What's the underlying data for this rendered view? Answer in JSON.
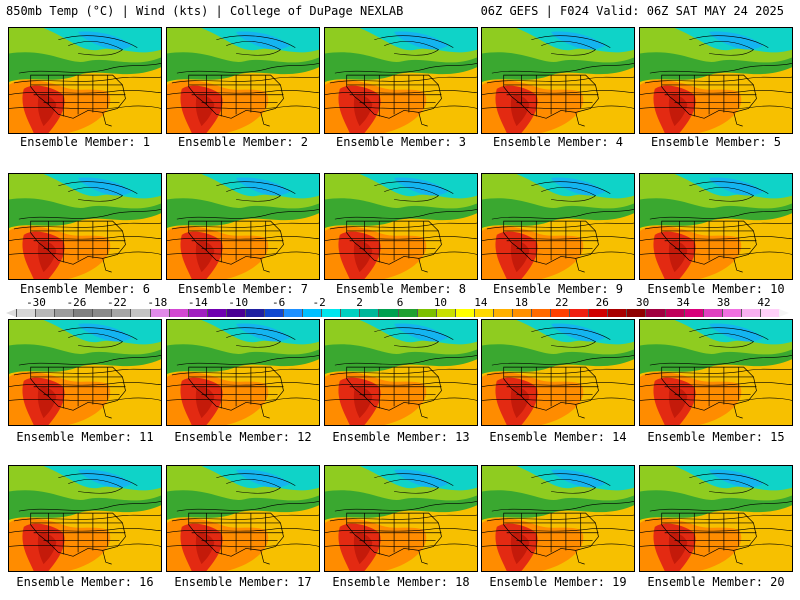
{
  "header": {
    "left": "850mb Temp (°C) | Wind (kts) | College of DuPage NEXLAB",
    "right": "06Z GEFS | F024 Valid: 06Z SAT MAY 24 2025"
  },
  "members": [
    "Ensemble Member: 1",
    "Ensemble Member: 2",
    "Ensemble Member: 3",
    "Ensemble Member: 4",
    "Ensemble Member: 5",
    "Ensemble Member: 6",
    "Ensemble Member: 7",
    "Ensemble Member: 8",
    "Ensemble Member: 9",
    "Ensemble Member: 10",
    "Ensemble Member: 11",
    "Ensemble Member: 12",
    "Ensemble Member: 13",
    "Ensemble Member: 14",
    "Ensemble Member: 15",
    "Ensemble Member: 16",
    "Ensemble Member: 17",
    "Ensemble Member: 18",
    "Ensemble Member: 19",
    "Ensemble Member: 20"
  ],
  "colorbar": {
    "ticks": [
      "-30",
      "-26",
      "-22",
      "-18",
      "-14",
      "-10",
      "-6",
      "-2",
      "2",
      "6",
      "10",
      "14",
      "18",
      "22",
      "26",
      "30",
      "34",
      "38",
      "42"
    ],
    "colors": [
      "#d6d6d6",
      "#b8b8b8",
      "#9c9c9c",
      "#808080",
      "#8a8a8a",
      "#a6a6a6",
      "#c4c4c4",
      "#e08ae8",
      "#d248d2",
      "#a020c0",
      "#7000b0",
      "#4b0094",
      "#2020a0",
      "#1048d0",
      "#1e90ff",
      "#00bfff",
      "#00e5ee",
      "#00d0c0",
      "#00b89a",
      "#00a050",
      "#20a030",
      "#7cc000",
      "#c8e000",
      "#ffff00",
      "#ffd800",
      "#ffb000",
      "#ff9000",
      "#ff6a00",
      "#ff4000",
      "#f02010",
      "#d00000",
      "#a80000",
      "#900000",
      "#a00040",
      "#c0005a",
      "#d8007a",
      "#e040c0",
      "#f070e0",
      "#f8b0f0",
      "#ffd0f8"
    ]
  },
  "colors": {
    "hot": "#e32a12",
    "warm": "#ff8c00",
    "mid": "#f7c000",
    "green": "#3aa830",
    "cool": "#0fd3c8",
    "cold": "#14b4f0"
  }
}
